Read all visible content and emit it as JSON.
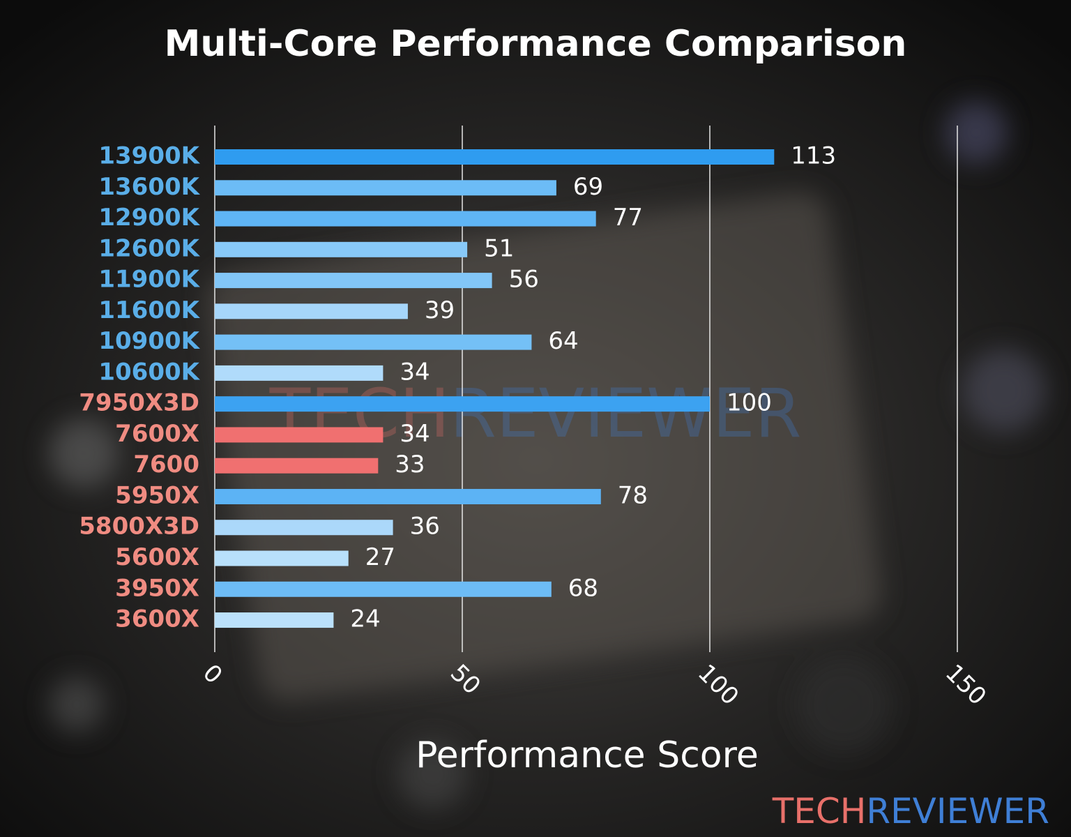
{
  "chart_data": {
    "type": "bar",
    "orientation": "horizontal",
    "title": "Multi-Core Performance Comparison",
    "x_label": "Performance Score",
    "categories": [
      "13900K",
      "13600K",
      "12900K",
      "12600K",
      "11900K",
      "11600K",
      "10900K",
      "10600K",
      "7950X3D",
      "7600X",
      "7600",
      "5950X",
      "5800X3D",
      "5600X",
      "3950X",
      "3600X"
    ],
    "category_colors": [
      "#5aaee8",
      "#5aaee8",
      "#5aaee8",
      "#5aaee8",
      "#5aaee8",
      "#5aaee8",
      "#5aaee8",
      "#5aaee8",
      "#f08c82",
      "#f08c82",
      "#f08c82",
      "#f08c82",
      "#f08c82",
      "#f08c82",
      "#f08c82",
      "#f08c82"
    ],
    "values": [
      113,
      69,
      77,
      51,
      56,
      39,
      64,
      34,
      100,
      34,
      33,
      78,
      36,
      27,
      68,
      24
    ],
    "colors": [
      "#2f9cf0",
      "#6cbcf6",
      "#5fb5f5",
      "#88c9f8",
      "#82c6f7",
      "#a6d6fa",
      "#74c0f6",
      "#b0dbfb",
      "#3ca2f1",
      "#f07070",
      "#f07070",
      "#5cb3f5",
      "#abd8fa",
      "#b8e0fb",
      "#6dbcf6",
      "#bbe1fb"
    ],
    "xlim": [
      0,
      150
    ],
    "xticks": [
      0,
      50,
      100,
      150
    ],
    "grid": true,
    "logo": {
      "parts": [
        "TECH",
        "REVIEWER"
      ],
      "colors": [
        "#e8706a",
        "#3f7fd6"
      ]
    }
  }
}
